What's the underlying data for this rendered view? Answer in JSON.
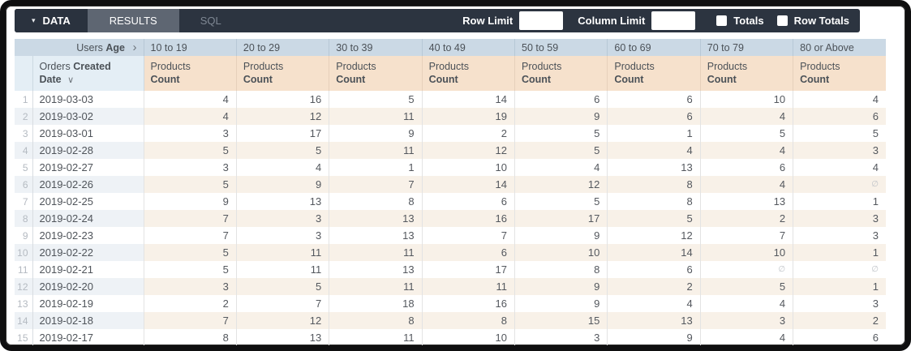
{
  "toolbar": {
    "tabs": {
      "data": "DATA",
      "results": "RESULTS",
      "sql": "SQL"
    },
    "row_limit_label": "Row Limit",
    "row_limit_value": "",
    "column_limit_label": "Column Limit",
    "column_limit_value": "",
    "totals_label": "Totals",
    "totals_checked": false,
    "row_totals_label": "Row Totals",
    "row_totals_checked": false
  },
  "table": {
    "pivot_header": {
      "prefix": "Users",
      "field": "Age"
    },
    "row_header": {
      "prefix": "Orders",
      "field_bold_1": "Created",
      "field_bold_2": "Date"
    },
    "measure": {
      "line1": "Products",
      "line2": "Count"
    },
    "age_buckets": [
      "10 to 19",
      "20 to 29",
      "30 to 39",
      "40 to 49",
      "50 to 59",
      "60 to 69",
      "70 to 79",
      "80 or Above"
    ],
    "null_symbol": "∅",
    "rows": [
      {
        "index": 1,
        "date": "2019-03-03",
        "values": [
          4,
          16,
          5,
          14,
          6,
          6,
          10,
          4
        ]
      },
      {
        "index": 2,
        "date": "2019-03-02",
        "values": [
          4,
          12,
          11,
          19,
          9,
          6,
          4,
          6
        ]
      },
      {
        "index": 3,
        "date": "2019-03-01",
        "values": [
          3,
          17,
          9,
          2,
          5,
          1,
          5,
          5
        ]
      },
      {
        "index": 4,
        "date": "2019-02-28",
        "values": [
          5,
          5,
          11,
          12,
          5,
          4,
          4,
          3
        ]
      },
      {
        "index": 5,
        "date": "2019-02-27",
        "values": [
          3,
          4,
          1,
          10,
          4,
          13,
          6,
          4
        ]
      },
      {
        "index": 6,
        "date": "2019-02-26",
        "values": [
          5,
          9,
          7,
          14,
          12,
          8,
          4,
          "∅"
        ]
      },
      {
        "index": 7,
        "date": "2019-02-25",
        "values": [
          9,
          13,
          8,
          6,
          5,
          8,
          13,
          1
        ]
      },
      {
        "index": 8,
        "date": "2019-02-24",
        "values": [
          7,
          3,
          13,
          16,
          17,
          5,
          2,
          3
        ]
      },
      {
        "index": 9,
        "date": "2019-02-23",
        "values": [
          7,
          3,
          13,
          7,
          9,
          12,
          7,
          3
        ]
      },
      {
        "index": 10,
        "date": "2019-02-22",
        "values": [
          5,
          11,
          11,
          6,
          10,
          14,
          10,
          1
        ]
      },
      {
        "index": 11,
        "date": "2019-02-21",
        "values": [
          5,
          11,
          13,
          17,
          8,
          6,
          "∅",
          "∅"
        ]
      },
      {
        "index": 12,
        "date": "2019-02-20",
        "values": [
          3,
          5,
          11,
          11,
          9,
          2,
          5,
          1
        ]
      },
      {
        "index": 13,
        "date": "2019-02-19",
        "values": [
          2,
          7,
          18,
          16,
          9,
          4,
          4,
          3
        ]
      },
      {
        "index": 14,
        "date": "2019-02-18",
        "values": [
          7,
          12,
          8,
          8,
          15,
          13,
          3,
          2
        ]
      },
      {
        "index": 15,
        "date": "2019-02-17",
        "values": [
          8,
          13,
          11,
          10,
          3,
          9,
          4,
          6
        ]
      }
    ]
  },
  "colors": {
    "navbar_bg": "#2c3440",
    "results_tab_bg": "#5e6672",
    "header_blue": "#cbd9e5",
    "header_blue_light": "#e4eef5",
    "header_peach": "#f6e1cc",
    "stripe_peach": "#f8f1e8",
    "stripe_blue": "#eef2f6"
  }
}
